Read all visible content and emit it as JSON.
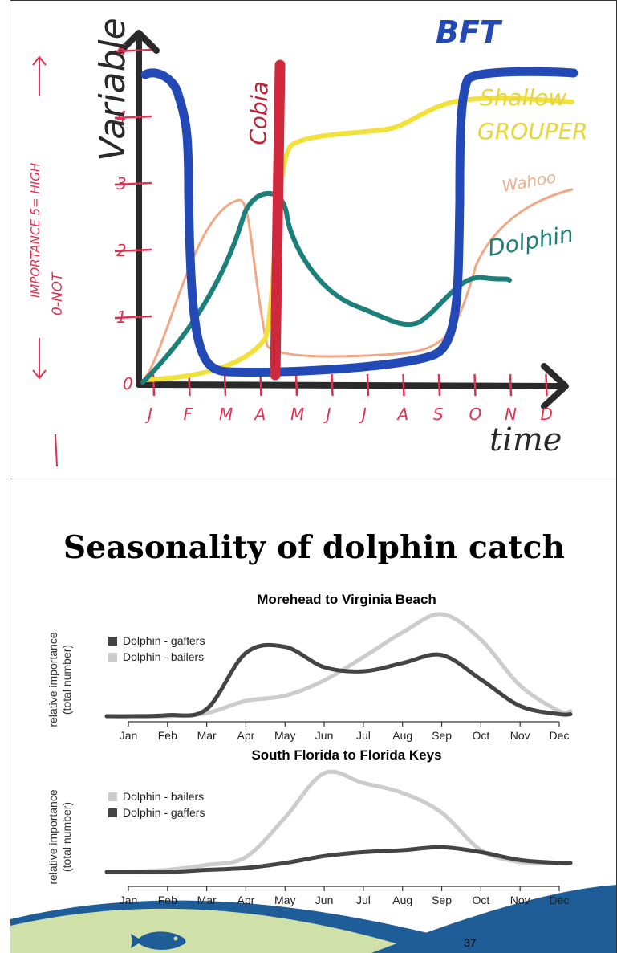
{
  "sketch": {
    "y_label": "Variable",
    "x_label": "time",
    "importance_note_top": "IMPORTANCE 5= HIGH",
    "importance_note_bottom": "0-NOT",
    "corner_tag": "BFT",
    "y_ticks": [
      "0",
      "1",
      "2",
      "3",
      "4",
      "5"
    ],
    "months": [
      "J",
      "F",
      "M",
      "A",
      "M",
      "J",
      "J",
      "A",
      "S",
      "O",
      "N",
      "D"
    ],
    "species_labels": {
      "cobia": "Cobia",
      "shallow": "Shallow",
      "grouper": "GROUPER",
      "wahoo": "Wahoo",
      "dolphin": "Dolphin"
    },
    "colors": {
      "bft": "#2249b5",
      "cobia": "#d0283c",
      "grouper": "#f2e13a",
      "wahoo": "#f2a886",
      "dolphin": "#1c7f7a",
      "axis": "#2a2a2a",
      "ticks": "#e03050"
    }
  },
  "slide": {
    "title": "Seasonality of dolphin catch",
    "page_number": "37"
  },
  "chart_data": [
    {
      "type": "area",
      "title": "Morehead to Virginia Beach",
      "ylabel": "relative importance (total number)",
      "categories": [
        "Jan",
        "Feb",
        "Mar",
        "Apr",
        "May",
        "Jun",
        "Jul",
        "Aug",
        "Sep",
        "Oct",
        "Nov",
        "Dec"
      ],
      "legend": "top-left",
      "series": [
        {
          "name": "Dolphin - gaffers",
          "color": "#444444",
          "values": [
            0.0,
            0.01,
            0.07,
            0.62,
            0.68,
            0.48,
            0.44,
            0.52,
            0.6,
            0.36,
            0.1,
            0.02
          ]
        },
        {
          "name": "Dolphin - bailers",
          "color": "#cccccc",
          "values": [
            0.0,
            0.0,
            0.03,
            0.15,
            0.2,
            0.35,
            0.58,
            0.82,
            1.0,
            0.75,
            0.3,
            0.05
          ]
        }
      ]
    },
    {
      "type": "area",
      "title": "South Florida to Florida Keys",
      "ylabel": "relative importance (total number)",
      "categories": [
        "Jan",
        "Feb",
        "Mar",
        "Apr",
        "May",
        "Jun",
        "Jul",
        "Aug",
        "Sep",
        "Oct",
        "Nov",
        "Dec"
      ],
      "legend": "top-left",
      "series": [
        {
          "name": "Dolphin - bailers",
          "color": "#cccccc",
          "values": [
            0.0,
            0.02,
            0.07,
            0.15,
            0.55,
            1.0,
            0.9,
            0.8,
            0.6,
            0.22,
            0.1,
            0.09
          ]
        },
        {
          "name": "Dolphin - gaffers",
          "color": "#444444",
          "values": [
            0.0,
            0.0,
            0.02,
            0.04,
            0.09,
            0.16,
            0.2,
            0.22,
            0.25,
            0.2,
            0.12,
            0.09
          ]
        }
      ]
    }
  ]
}
